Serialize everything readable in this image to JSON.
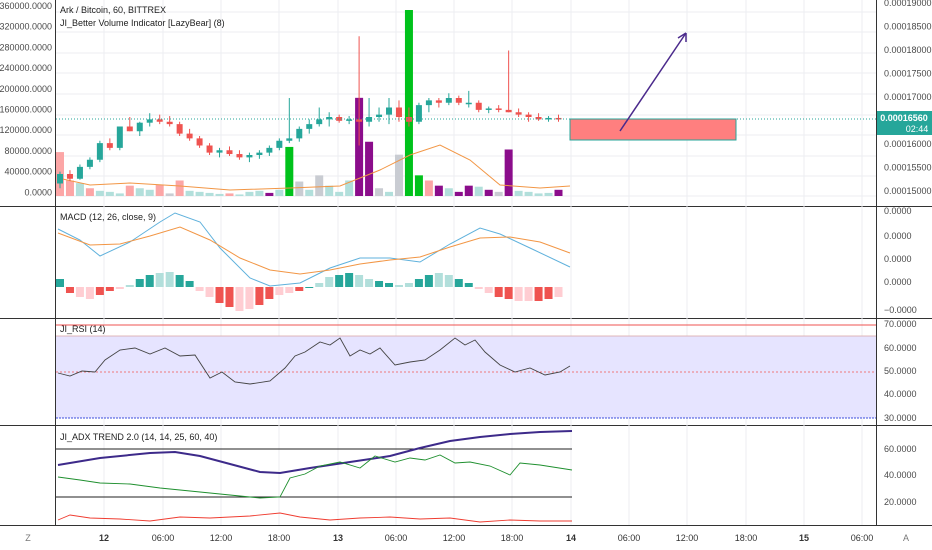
{
  "legend": {
    "title": "Ark / Bitcoin, 60, BITTREX",
    "volume": "JI_Better Volume Indicator [LazyBear] (8)",
    "macd": "MACD (12, 26, close, 9)",
    "rsi": "JI_RSI (14)",
    "adx": "JI_ADX TREND 2.0 (14, 14, 25, 60, 40)"
  },
  "left_axis": [
    "360000.0000",
    "320000.0000",
    "280000.0000",
    "240000.0000",
    "200000.0000",
    "160000.0000",
    "120000.0000",
    "80000.0000",
    "40000.0000",
    "0.0000"
  ],
  "right_axis": [
    "0.00019000",
    "0.00018500",
    "0.00018000",
    "0.00017500",
    "0.00017000",
    "0.00016500",
    "0.00016000",
    "0.00015500",
    "0.00015000"
  ],
  "price_badge": {
    "value": "0.00016560",
    "countdown": "02:44"
  },
  "macd_axis": [
    "0.0000",
    "0.0000",
    "0.0000",
    "0.0000",
    "−0.0000"
  ],
  "rsi_axis": [
    "70.0000",
    "60.0000",
    "50.0000",
    "40.0000",
    "30.0000"
  ],
  "adx_axis": [
    "60.0000",
    "40.0000",
    "20.0000"
  ],
  "time_labels": [
    "12",
    "06:00",
    "12:00",
    "18:00",
    "13",
    "06:00",
    "12:00",
    "18:00",
    "14",
    "06:00",
    "12:00",
    "18:00",
    "15",
    "06:00"
  ],
  "bottom_icons": {
    "left": "Z",
    "right": "A"
  },
  "colors": {
    "up": "#26a69a",
    "down": "#ef5350",
    "volume_green": "#00c21b",
    "volume_purple": "#8b0d8b",
    "volume_grey": "#c9ccd2",
    "ema": "#f29645",
    "macd_line": "#5fb1dc",
    "rsi_band": "#e6e4ff",
    "adx_strong": "#3d2a8a",
    "arrow": "#4b2a8c",
    "box": "#ff7f7f"
  },
  "chart_data": {
    "type": "candlestick",
    "candles": [
      [
        0.000152,
        0.0001545,
        0.000151,
        0.000154
      ],
      [
        0.000154,
        0.0001548,
        0.0001525,
        0.000153
      ],
      [
        0.000153,
        0.000156,
        0.0001528,
        0.0001555
      ],
      [
        0.0001555,
        0.0001575,
        0.000155,
        0.000157
      ],
      [
        0.000157,
        0.000161,
        0.0001565,
        0.0001605
      ],
      [
        0.0001605,
        0.0001615,
        0.000159,
        0.0001595
      ],
      [
        0.0001595,
        0.000164,
        0.000159,
        0.000164
      ],
      [
        0.000164,
        0.000166,
        0.000163,
        0.000163
      ],
      [
        0.000163,
        0.000165,
        0.000162,
        0.0001648
      ],
      [
        0.0001648,
        0.0001668,
        0.000164,
        0.0001655
      ],
      [
        0.0001655,
        0.0001665,
        0.0001645,
        0.000165
      ],
      [
        0.000165,
        0.0001662,
        0.000164,
        0.0001645
      ],
      [
        0.0001645,
        0.000165,
        0.000162,
        0.0001625
      ],
      [
        0.0001625,
        0.0001635,
        0.000161,
        0.0001615
      ],
      [
        0.0001615,
        0.000162,
        0.0001595,
        0.00016
      ],
      [
        0.00016,
        0.0001605,
        0.000158,
        0.0001585
      ],
      [
        0.0001585,
        0.0001595,
        0.0001575,
        0.000159
      ],
      [
        0.000159,
        0.0001598,
        0.0001578,
        0.0001582
      ],
      [
        0.0001582,
        0.000159,
        0.000157,
        0.0001575
      ],
      [
        0.0001575,
        0.0001585,
        0.0001565,
        0.000158
      ],
      [
        0.000158,
        0.000159,
        0.0001572,
        0.0001585
      ],
      [
        0.0001585,
        0.00016,
        0.0001578,
        0.0001595
      ],
      [
        0.0001595,
        0.0001615,
        0.000159,
        0.000161
      ],
      [
        0.000161,
        0.00017,
        0.0001605,
        0.0001615
      ],
      [
        0.0001615,
        0.000164,
        0.0001608,
        0.0001635
      ],
      [
        0.0001635,
        0.0001655,
        0.0001625,
        0.0001645
      ],
      [
        0.0001645,
        0.000168,
        0.000164,
        0.0001655
      ],
      [
        0.0001655,
        0.000167,
        0.000164,
        0.000166
      ],
      [
        0.000166,
        0.0001665,
        0.0001648,
        0.0001652
      ],
      [
        0.0001652,
        0.0001662,
        0.0001645,
        0.0001655
      ],
      [
        0.0001655,
        0.000183,
        0.00016,
        0.000165
      ],
      [
        0.000165,
        0.00017,
        0.000164,
        0.000166
      ],
      [
        0.000166,
        0.000168,
        0.000165,
        0.0001665
      ],
      [
        0.0001665,
        0.00017,
        0.0001645,
        0.000168
      ],
      [
        0.000168,
        0.0001695,
        0.000165,
        0.000166
      ],
      [
        0.000166,
        0.000168,
        0.000164,
        0.000165
      ],
      [
        0.000165,
        0.000169,
        0.0001645,
        0.0001685
      ],
      [
        0.0001685,
        0.00017,
        0.000167,
        0.0001695
      ],
      [
        0.0001695,
        0.00017,
        0.000168,
        0.000169
      ],
      [
        0.000169,
        0.000171,
        0.0001685,
        0.00017
      ],
      [
        0.00017,
        0.0001705,
        0.0001685,
        0.000169
      ],
      [
        0.000169,
        0.0001715,
        0.000168,
        0.000169
      ],
      [
        0.000169,
        0.0001695,
        0.000167,
        0.0001675
      ],
      [
        0.0001675,
        0.0001682,
        0.0001668,
        0.0001678
      ],
      [
        0.0001678,
        0.0001685,
        0.000167,
        0.0001675
      ],
      [
        0.0001675,
        0.00018,
        0.000167,
        0.000167
      ],
      [
        0.000167,
        0.0001678,
        0.000166,
        0.0001665
      ],
      [
        0.0001665,
        0.000167,
        0.000165,
        0.000166
      ],
      [
        0.000166,
        0.0001668,
        0.0001652,
        0.0001655
      ],
      [
        0.0001655,
        0.0001662,
        0.000165,
        0.0001658
      ],
      [
        0.0001658,
        0.0001665,
        0.000165,
        0.0001656
      ]
    ],
    "volume_max": 360000
  }
}
